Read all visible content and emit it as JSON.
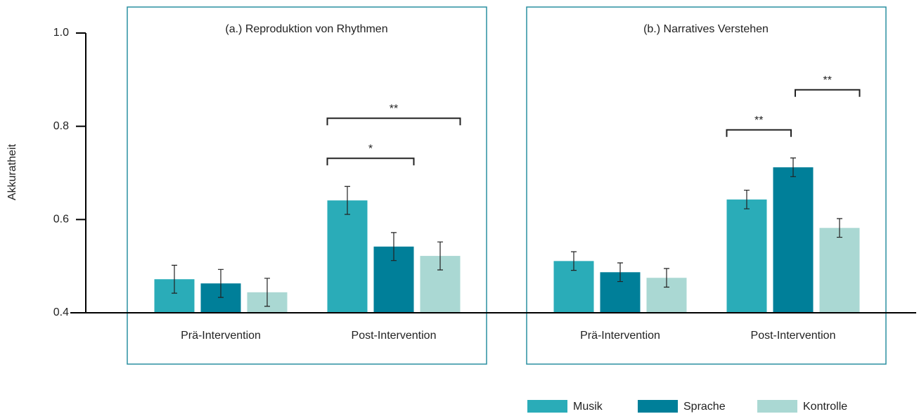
{
  "chart_data": [
    {
      "type": "bar",
      "title": "(a.) Reproduktion von Rhythmen",
      "y_label": "Akkuratheit",
      "categories": [
        "Prä-Intervention",
        "Post-Intervention"
      ],
      "series": [
        {
          "name": "Musik",
          "color": "#2aacb8",
          "values": [
            0.472,
            0.641
          ],
          "errors": [
            0.03,
            0.03
          ]
        },
        {
          "name": "Sprache",
          "color": "#007f99",
          "values": [
            0.463,
            0.542
          ],
          "errors": [
            0.03,
            0.03
          ]
        },
        {
          "name": "Kontrolle",
          "color": "#aad8d3",
          "values": [
            0.444,
            0.522
          ],
          "errors": [
            0.03,
            0.03
          ]
        }
      ],
      "annotations": [
        {
          "category": 1,
          "series": [
            0,
            1
          ],
          "label": "*"
        },
        {
          "category": 1,
          "series": [
            0,
            2
          ],
          "label": "**"
        }
      ],
      "ylim": [
        0.4,
        1
      ],
      "yticks": [
        0.4,
        0.6,
        0.8,
        {
          "value": 1,
          "label": "1.0"
        }
      ]
    },
    {
      "type": "bar",
      "title": "(b.) Narratives Verstehen",
      "categories": [
        "Prä-Intervention",
        "Post-Intervention"
      ],
      "series": [
        {
          "color": "#2aacb8",
          "values": [
            0.511,
            0.643
          ],
          "errors": [
            0.02,
            0.02
          ]
        },
        {
          "color": "#007f99",
          "values": [
            0.487,
            0.712
          ],
          "errors": [
            0.02,
            0.02
          ]
        },
        {
          "color": "#aad8d3",
          "values": [
            0.475,
            0.582
          ],
          "errors": [
            0.02,
            0.02
          ]
        }
      ],
      "annotations": [
        {
          "category": 1,
          "series": [
            0,
            1
          ],
          "label": "**"
        },
        {
          "category": 1,
          "series": [
            1,
            2
          ],
          "label": "**"
        }
      ],
      "ylim": [
        0.4,
        1
      ]
    }
  ]
}
